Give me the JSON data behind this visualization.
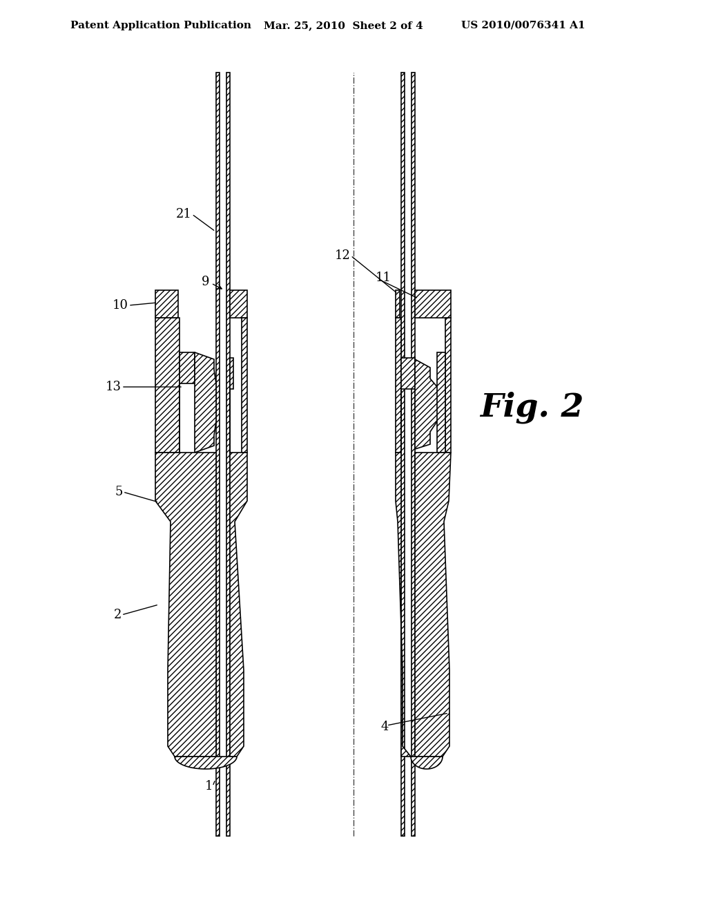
{
  "title_left": "Patent Application Publication",
  "title_mid": "Mar. 25, 2010  Sheet 2 of 4",
  "title_right": "US 2010/0076341 A1",
  "fig_label": "Fig. 2",
  "background_color": "#ffffff",
  "line_color": "#000000",
  "NL": 323,
  "NR": 591,
  "TW": 5,
  "TG": 5,
  "FT": 900,
  "FB": 860,
  "HS": 810,
  "HM": 765,
  "HB": 665,
  "CT": 665,
  "CW1": 595,
  "CW2": 565,
  "CW3": 350,
  "CB": 225,
  "HLO": 225,
  "HLI": 260,
  "HRO2": 350,
  "RHOL": 645,
  "hatch": "////"
}
